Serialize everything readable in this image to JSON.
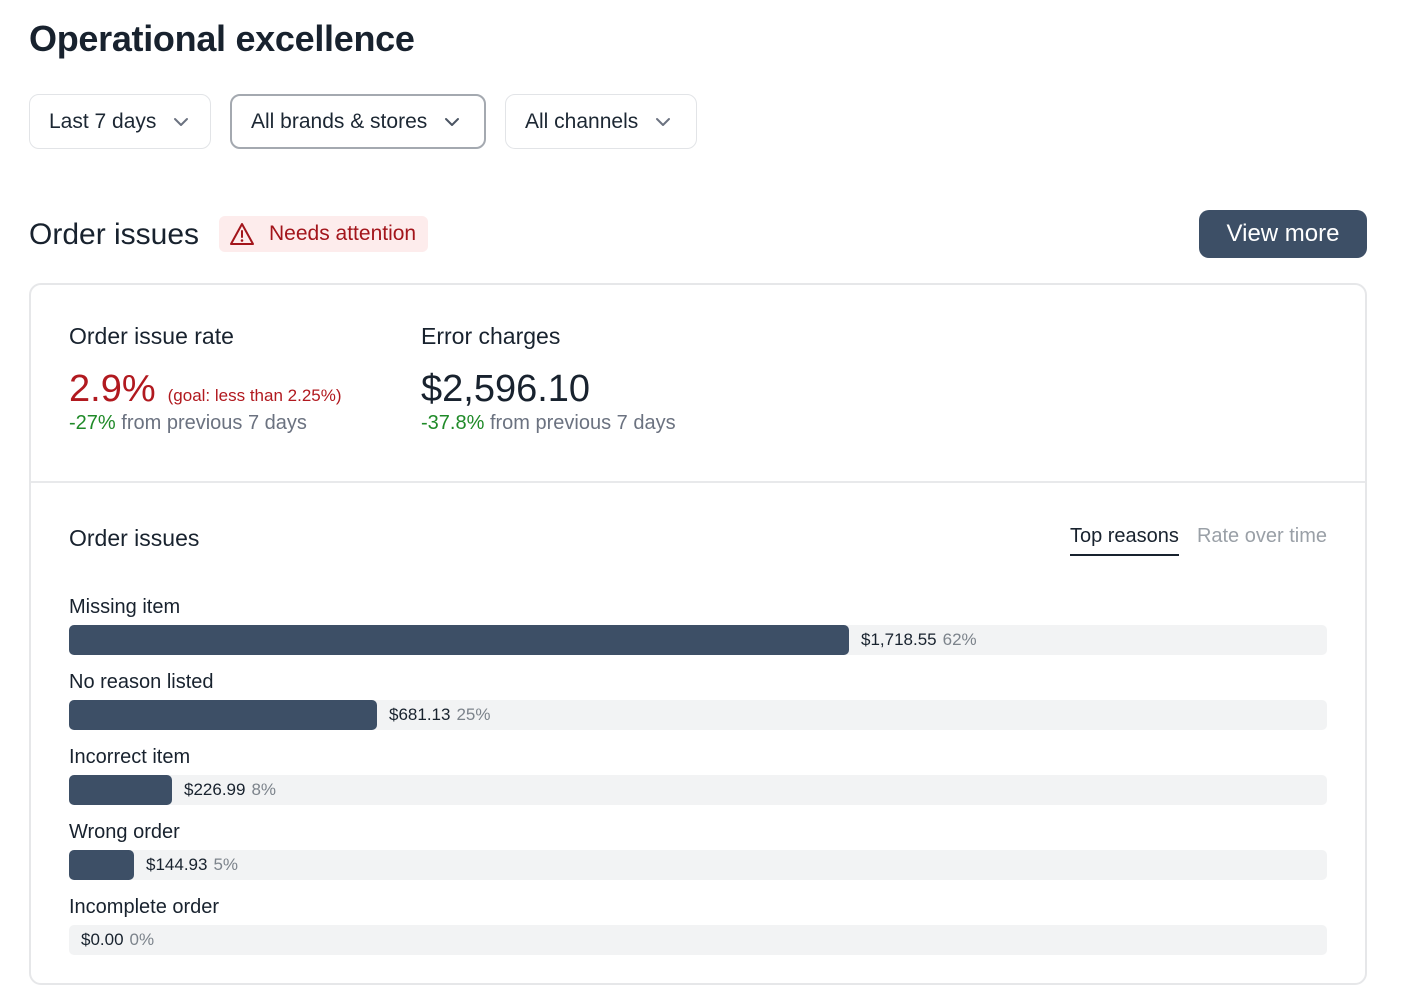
{
  "page": {
    "title": "Operational excellence"
  },
  "filters": [
    {
      "label": "Last 7 days",
      "icon": "chevron-down-icon"
    },
    {
      "label": "All brands & stores",
      "icon": "chevron-down-icon",
      "selected": true
    },
    {
      "label": "All channels",
      "icon": "chevron-down-icon"
    }
  ],
  "section": {
    "title": "Order issues",
    "badge": {
      "label": "Needs attention",
      "icon": "warning-icon",
      "color": "#a3151b",
      "background": "#fdecec"
    },
    "view_more_label": "View more"
  },
  "metrics": {
    "order_issue_rate": {
      "label": "Order issue rate",
      "value": "2.9%",
      "goal": "(goal: less than 2.25%)",
      "delta": "-27%",
      "delta_suffix": "from previous 7 days"
    },
    "error_charges": {
      "label": "Error charges",
      "value": "$2,596.10",
      "delta": "-37.8%",
      "delta_suffix": "from previous 7 days"
    }
  },
  "order_issues": {
    "title": "Order issues",
    "tabs": [
      {
        "label": "Top reasons",
        "active": true
      },
      {
        "label": "Rate over time",
        "active": false
      }
    ],
    "reasons": [
      {
        "label": "Missing item",
        "amount": "$1,718.55",
        "percent": "62%",
        "share": 0.62
      },
      {
        "label": "No reason listed",
        "amount": "$681.13",
        "percent": "25%",
        "share": 0.245
      },
      {
        "label": "Incorrect item",
        "amount": "$226.99",
        "percent": "8%",
        "share": 0.082
      },
      {
        "label": "Wrong order",
        "amount": "$144.93",
        "percent": "5%",
        "share": 0.052
      },
      {
        "label": "Incomplete order",
        "amount": "$0.00",
        "percent": "0%",
        "share": 0
      }
    ]
  },
  "colors": {
    "bar_fill": "#3d4f66",
    "bar_track": "#f2f3f4",
    "negative": "#b1191f",
    "positive_delta": "#1f8a28",
    "button_bg": "#3d4f66"
  }
}
